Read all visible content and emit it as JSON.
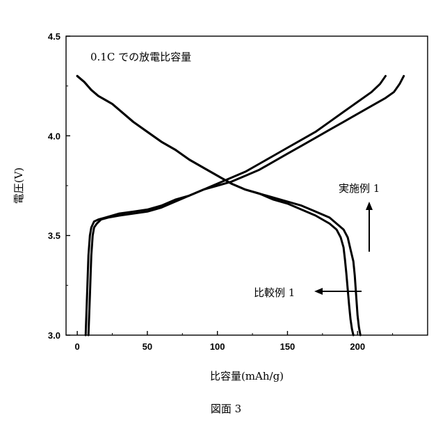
{
  "chart_data": {
    "type": "line",
    "title": "0.1C での放電比容量",
    "xlabel": "比容量(mAh/g)",
    "ylabel": "電圧(V)",
    "xlim": [
      -8,
      250
    ],
    "ylim": [
      3.0,
      4.5
    ],
    "x_ticks": [
      0,
      50,
      100,
      150,
      200
    ],
    "y_ticks": [
      3.0,
      3.5,
      4.0,
      4.5
    ],
    "x_tick_labels": [
      "0",
      "50",
      "100",
      "150",
      "200"
    ],
    "y_tick_labels": [
      "3.0",
      "3.5",
      "4.0",
      "4.5"
    ],
    "grid": false,
    "caption": "図面 3",
    "annotations": [
      {
        "text": "実施例 1",
        "arrow_direction": "up"
      },
      {
        "text": "比較例 1",
        "arrow_direction": "left"
      }
    ],
    "series": [
      {
        "name": "実施例 1",
        "discharge": {
          "x": [
            0,
            5,
            10,
            15,
            20,
            25,
            30,
            40,
            50,
            60,
            70,
            80,
            90,
            100,
            110,
            120,
            130,
            140,
            150,
            160,
            170,
            180,
            185,
            190,
            193,
            195,
            197,
            198,
            199,
            200,
            201,
            202
          ],
          "y": [
            4.3,
            4.27,
            4.23,
            4.2,
            4.18,
            4.16,
            4.13,
            4.07,
            4.02,
            3.97,
            3.93,
            3.88,
            3.84,
            3.8,
            3.76,
            3.73,
            3.71,
            3.69,
            3.67,
            3.65,
            3.62,
            3.59,
            3.56,
            3.53,
            3.49,
            3.43,
            3.37,
            3.3,
            3.2,
            3.1,
            3.04,
            3.0
          ]
        },
        "charge": {
          "x": [
            6,
            7,
            8,
            9,
            10,
            12,
            15,
            20,
            30,
            40,
            50,
            60,
            70,
            80,
            90,
            100,
            110,
            120,
            130,
            140,
            150,
            160,
            170,
            180,
            190,
            200,
            210,
            220,
            226,
            230,
            233
          ],
          "y": [
            3.0,
            3.2,
            3.4,
            3.5,
            3.54,
            3.57,
            3.58,
            3.59,
            3.61,
            3.62,
            3.63,
            3.65,
            3.68,
            3.7,
            3.73,
            3.75,
            3.77,
            3.8,
            3.83,
            3.87,
            3.91,
            3.95,
            3.99,
            4.03,
            4.07,
            4.11,
            4.15,
            4.19,
            4.22,
            4.26,
            4.3
          ]
        }
      },
      {
        "name": "比較例 1",
        "discharge": {
          "x": [
            0,
            5,
            10,
            15,
            20,
            25,
            30,
            40,
            50,
            60,
            70,
            80,
            90,
            100,
            110,
            120,
            130,
            140,
            150,
            160,
            170,
            180,
            185,
            188,
            190,
            191,
            192,
            193,
            194,
            195,
            196,
            197
          ],
          "y": [
            4.3,
            4.27,
            4.23,
            4.2,
            4.18,
            4.16,
            4.13,
            4.07,
            4.02,
            3.97,
            3.93,
            3.88,
            3.84,
            3.8,
            3.76,
            3.73,
            3.71,
            3.68,
            3.66,
            3.63,
            3.6,
            3.56,
            3.53,
            3.49,
            3.44,
            3.38,
            3.31,
            3.23,
            3.15,
            3.08,
            3.03,
            3.0
          ]
        },
        "charge": {
          "x": [
            8,
            9,
            10,
            11,
            12,
            14,
            17,
            22,
            30,
            40,
            50,
            60,
            70,
            80,
            90,
            100,
            110,
            120,
            130,
            140,
            150,
            160,
            170,
            180,
            190,
            200,
            210,
            216,
            220
          ],
          "y": [
            3.0,
            3.2,
            3.4,
            3.5,
            3.54,
            3.56,
            3.58,
            3.59,
            3.6,
            3.61,
            3.62,
            3.64,
            3.67,
            3.7,
            3.73,
            3.76,
            3.79,
            3.82,
            3.86,
            3.9,
            3.94,
            3.98,
            4.02,
            4.07,
            4.12,
            4.17,
            4.22,
            4.26,
            4.3
          ]
        }
      }
    ]
  }
}
